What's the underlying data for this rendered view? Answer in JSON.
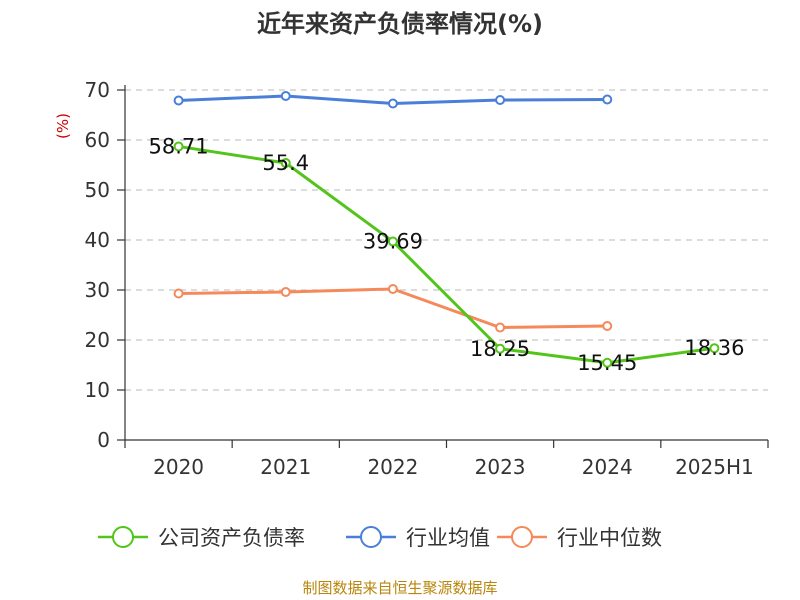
{
  "chart_data": {
    "type": "line",
    "title": "近年来资产负债率情况(%)",
    "ylabel": "(%)",
    "ylim": [
      0,
      70
    ],
    "yticks": [
      0,
      10,
      20,
      30,
      40,
      50,
      60,
      70
    ],
    "categories": [
      "2020",
      "2021",
      "2022",
      "2023",
      "2024",
      "2025H1"
    ],
    "grid": true,
    "legend_position": "bottom",
    "series": [
      {
        "name": "公司资产负债率",
        "color": "#52c41a",
        "values": [
          58.71,
          55.4,
          39.69,
          18.25,
          15.45,
          18.36
        ],
        "labels": [
          "58.71",
          "55.4",
          "39.69",
          "18.25",
          "15.45",
          "18.36"
        ]
      },
      {
        "name": "行业均值",
        "color": "#4a7fd9",
        "values": [
          67.9,
          68.8,
          67.3,
          68.0,
          68.1,
          null
        ]
      },
      {
        "name": "行业中位数",
        "color": "#f5895a",
        "values": [
          29.3,
          29.6,
          30.2,
          22.5,
          22.8,
          null
        ]
      }
    ]
  },
  "source": "制图数据来自恒生聚源数据库"
}
